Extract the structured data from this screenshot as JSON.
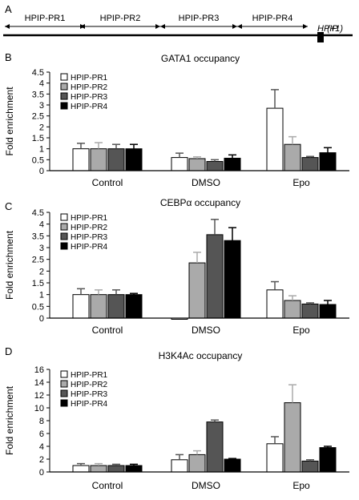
{
  "panel_a": {
    "letter": "A",
    "regions": [
      "HPIP-PR1",
      "HPIP-PR2",
      "HPIP-PR3",
      "HPIP-PR4"
    ],
    "gene_label": "HPIP",
    "tss_label": "(+1)"
  },
  "colors": {
    "series": [
      "#ffffff",
      "#aaaaaa",
      "#555555",
      "#000000"
    ],
    "axis": "#000000"
  },
  "chart_data": [
    {
      "type": "bar",
      "panel": "B",
      "title": "GATA1 occupancy",
      "ylabel": "Fold enrichment",
      "ylim": [
        0,
        4.5
      ],
      "yticks": [
        "0",
        "0.5",
        "1",
        "1.5",
        "2",
        "2.5",
        "3",
        "3.5",
        "4",
        "4.5"
      ],
      "categories": [
        "Control",
        "DMSO",
        "Epo"
      ],
      "legend_position": "top-left",
      "series": [
        {
          "name": "HPIP-PR1",
          "values": [
            1.0,
            0.6,
            2.85
          ],
          "errors": [
            0.25,
            0.2,
            0.85
          ]
        },
        {
          "name": "HPIP-PR2",
          "values": [
            1.0,
            0.55,
            1.2
          ],
          "errors": [
            0.28,
            0.08,
            0.35
          ]
        },
        {
          "name": "HPIP-PR3",
          "values": [
            1.0,
            0.42,
            0.6
          ],
          "errors": [
            0.2,
            0.08,
            0.05
          ]
        },
        {
          "name": "HPIP-PR4",
          "values": [
            1.0,
            0.57,
            0.82
          ],
          "errors": [
            0.2,
            0.15,
            0.23
          ]
        }
      ]
    },
    {
      "type": "bar",
      "panel": "C",
      "title": "CEBPα occupancy",
      "ylabel": "Fold enrichment",
      "ylim": [
        0,
        4.5
      ],
      "yticks": [
        "0",
        "0.5",
        "1",
        "1.5",
        "2",
        "2.5",
        "3",
        "3.5",
        "4",
        "4.5"
      ],
      "categories": [
        "Control",
        "DMSO",
        "Epo"
      ],
      "legend_position": "top-left",
      "series": [
        {
          "name": "HPIP-PR1",
          "values": [
            1.0,
            -0.05,
            1.2
          ],
          "errors": [
            0.25,
            0.0,
            0.35
          ]
        },
        {
          "name": "HPIP-PR2",
          "values": [
            1.0,
            2.35,
            0.75
          ],
          "errors": [
            0.2,
            0.45,
            0.2
          ]
        },
        {
          "name": "HPIP-PR3",
          "values": [
            1.0,
            3.55,
            0.6
          ],
          "errors": [
            0.2,
            0.65,
            0.05
          ]
        },
        {
          "name": "HPIP-PR4",
          "values": [
            1.0,
            3.3,
            0.58
          ],
          "errors": [
            0.05,
            0.55,
            0.17
          ]
        }
      ]
    },
    {
      "type": "bar",
      "panel": "D",
      "title": "H3K4Ac occupancy",
      "ylabel": "Fold enrichment",
      "ylim": [
        0,
        16
      ],
      "yticks": [
        "0",
        "2",
        "4",
        "6",
        "8",
        "10",
        "12",
        "14",
        "16"
      ],
      "categories": [
        "Control",
        "DMSO",
        "Epo"
      ],
      "legend_position": "top-left",
      "series": [
        {
          "name": "HPIP-PR1",
          "values": [
            1.0,
            1.9,
            4.4
          ],
          "errors": [
            0.3,
            0.8,
            1.1
          ]
        },
        {
          "name": "HPIP-PR2",
          "values": [
            1.0,
            2.7,
            10.8
          ],
          "errors": [
            0.3,
            0.6,
            2.8
          ]
        },
        {
          "name": "HPIP-PR3",
          "values": [
            1.0,
            7.8,
            1.7
          ],
          "errors": [
            0.2,
            0.3,
            0.2
          ]
        },
        {
          "name": "HPIP-PR4",
          "values": [
            1.0,
            2.0,
            3.8
          ],
          "errors": [
            0.2,
            0.1,
            0.2
          ]
        }
      ]
    }
  ]
}
